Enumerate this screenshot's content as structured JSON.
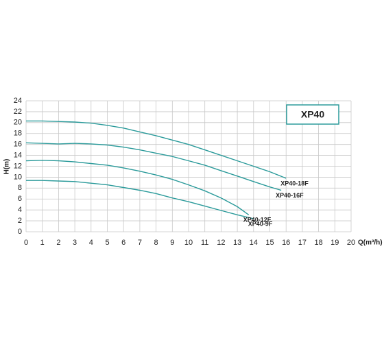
{
  "chart_data": {
    "type": "line",
    "ylabel": "H(m)",
    "xlabel": "Q(m³/h)",
    "legend_title": "XP40",
    "xlim": [
      0,
      20
    ],
    "xticks": [
      0,
      1,
      2,
      3,
      4,
      5,
      6,
      7,
      8,
      9,
      10,
      11,
      12,
      13,
      14,
      15,
      16,
      17,
      18,
      19,
      20
    ],
    "ylim": [
      0,
      24
    ],
    "yticks": [
      0,
      2,
      4,
      6,
      8,
      10,
      12,
      14,
      16,
      18,
      20,
      22,
      24
    ],
    "grid": true,
    "series": [
      {
        "name": "XP40-18F",
        "color": "#2a9a9a",
        "x": [
          0,
          1,
          2,
          3,
          4,
          5,
          6,
          7,
          8,
          9,
          10,
          11,
          12,
          13,
          14,
          15,
          16
        ],
        "values": [
          20.3,
          20.3,
          20.2,
          20.1,
          19.9,
          19.5,
          19.0,
          18.3,
          17.6,
          16.8,
          16.0,
          15.0,
          14.0,
          13.0,
          12.0,
          11.0,
          9.8
        ]
      },
      {
        "name": "XP40-16F",
        "color": "#2a9a9a",
        "x": [
          0,
          1,
          2,
          3,
          4,
          5,
          6,
          7,
          8,
          9,
          10,
          11,
          12,
          13,
          14,
          15,
          15.7
        ],
        "values": [
          16.3,
          16.2,
          16.1,
          16.2,
          16.1,
          15.9,
          15.5,
          15.0,
          14.4,
          13.8,
          13.0,
          12.2,
          11.2,
          10.2,
          9.2,
          8.2,
          7.6
        ]
      },
      {
        "name": "XP40-12F",
        "color": "#2a9a9a",
        "x": [
          0,
          1,
          2,
          3,
          4,
          5,
          6,
          7,
          8,
          9,
          10,
          11,
          12,
          13,
          13.7
        ],
        "values": [
          13.0,
          13.1,
          13.0,
          12.8,
          12.5,
          12.2,
          11.7,
          11.1,
          10.4,
          9.6,
          8.6,
          7.5,
          6.2,
          4.6,
          3.1
        ]
      },
      {
        "name": "XP40-9F",
        "color": "#2a9a9a",
        "x": [
          0,
          1,
          2,
          3,
          4,
          5,
          6,
          7,
          8,
          9,
          10,
          11,
          12,
          13,
          14
        ],
        "values": [
          9.4,
          9.4,
          9.3,
          9.2,
          8.9,
          8.6,
          8.1,
          7.6,
          7.0,
          6.2,
          5.5,
          4.7,
          3.9,
          3.1,
          2.4
        ]
      }
    ]
  }
}
